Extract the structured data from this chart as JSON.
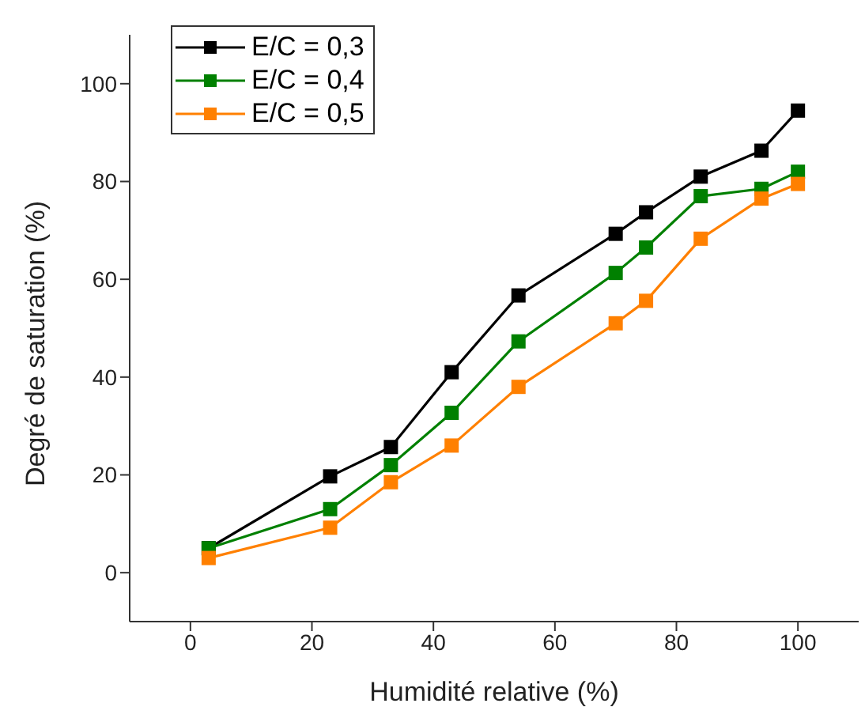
{
  "chart_data": {
    "type": "line",
    "xlabel": "Humidité relative (%)",
    "ylabel": "Degré de saturation (%)",
    "x": [
      3,
      23,
      33,
      43,
      54,
      70,
      75,
      84,
      94,
      100
    ],
    "series": [
      {
        "name": "E/C = 0,3",
        "color": "#000000",
        "values": [
          5,
          19.7,
          25.7,
          41,
          56.7,
          69.3,
          73.7,
          81,
          86.3,
          94.5
        ]
      },
      {
        "name": "E/C = 0,4",
        "color": "#008000",
        "values": [
          5,
          13,
          22,
          32.7,
          47.3,
          61.3,
          66.5,
          77,
          78.5,
          82
        ]
      },
      {
        "name": "E/C = 0,5",
        "color": "#ff8000",
        "values": [
          3,
          9.2,
          18.5,
          26,
          38,
          51,
          55.6,
          68.3,
          76.5,
          79.5
        ]
      }
    ],
    "xlim": [
      -10,
      110
    ],
    "xticks": [
      0,
      20,
      40,
      60,
      80,
      100
    ],
    "ylim": [
      -10,
      110
    ],
    "yticks": [
      0,
      20,
      40,
      60,
      80,
      100
    ],
    "grid": false,
    "legend": "top left",
    "marker": "square",
    "line_style": "solid"
  }
}
